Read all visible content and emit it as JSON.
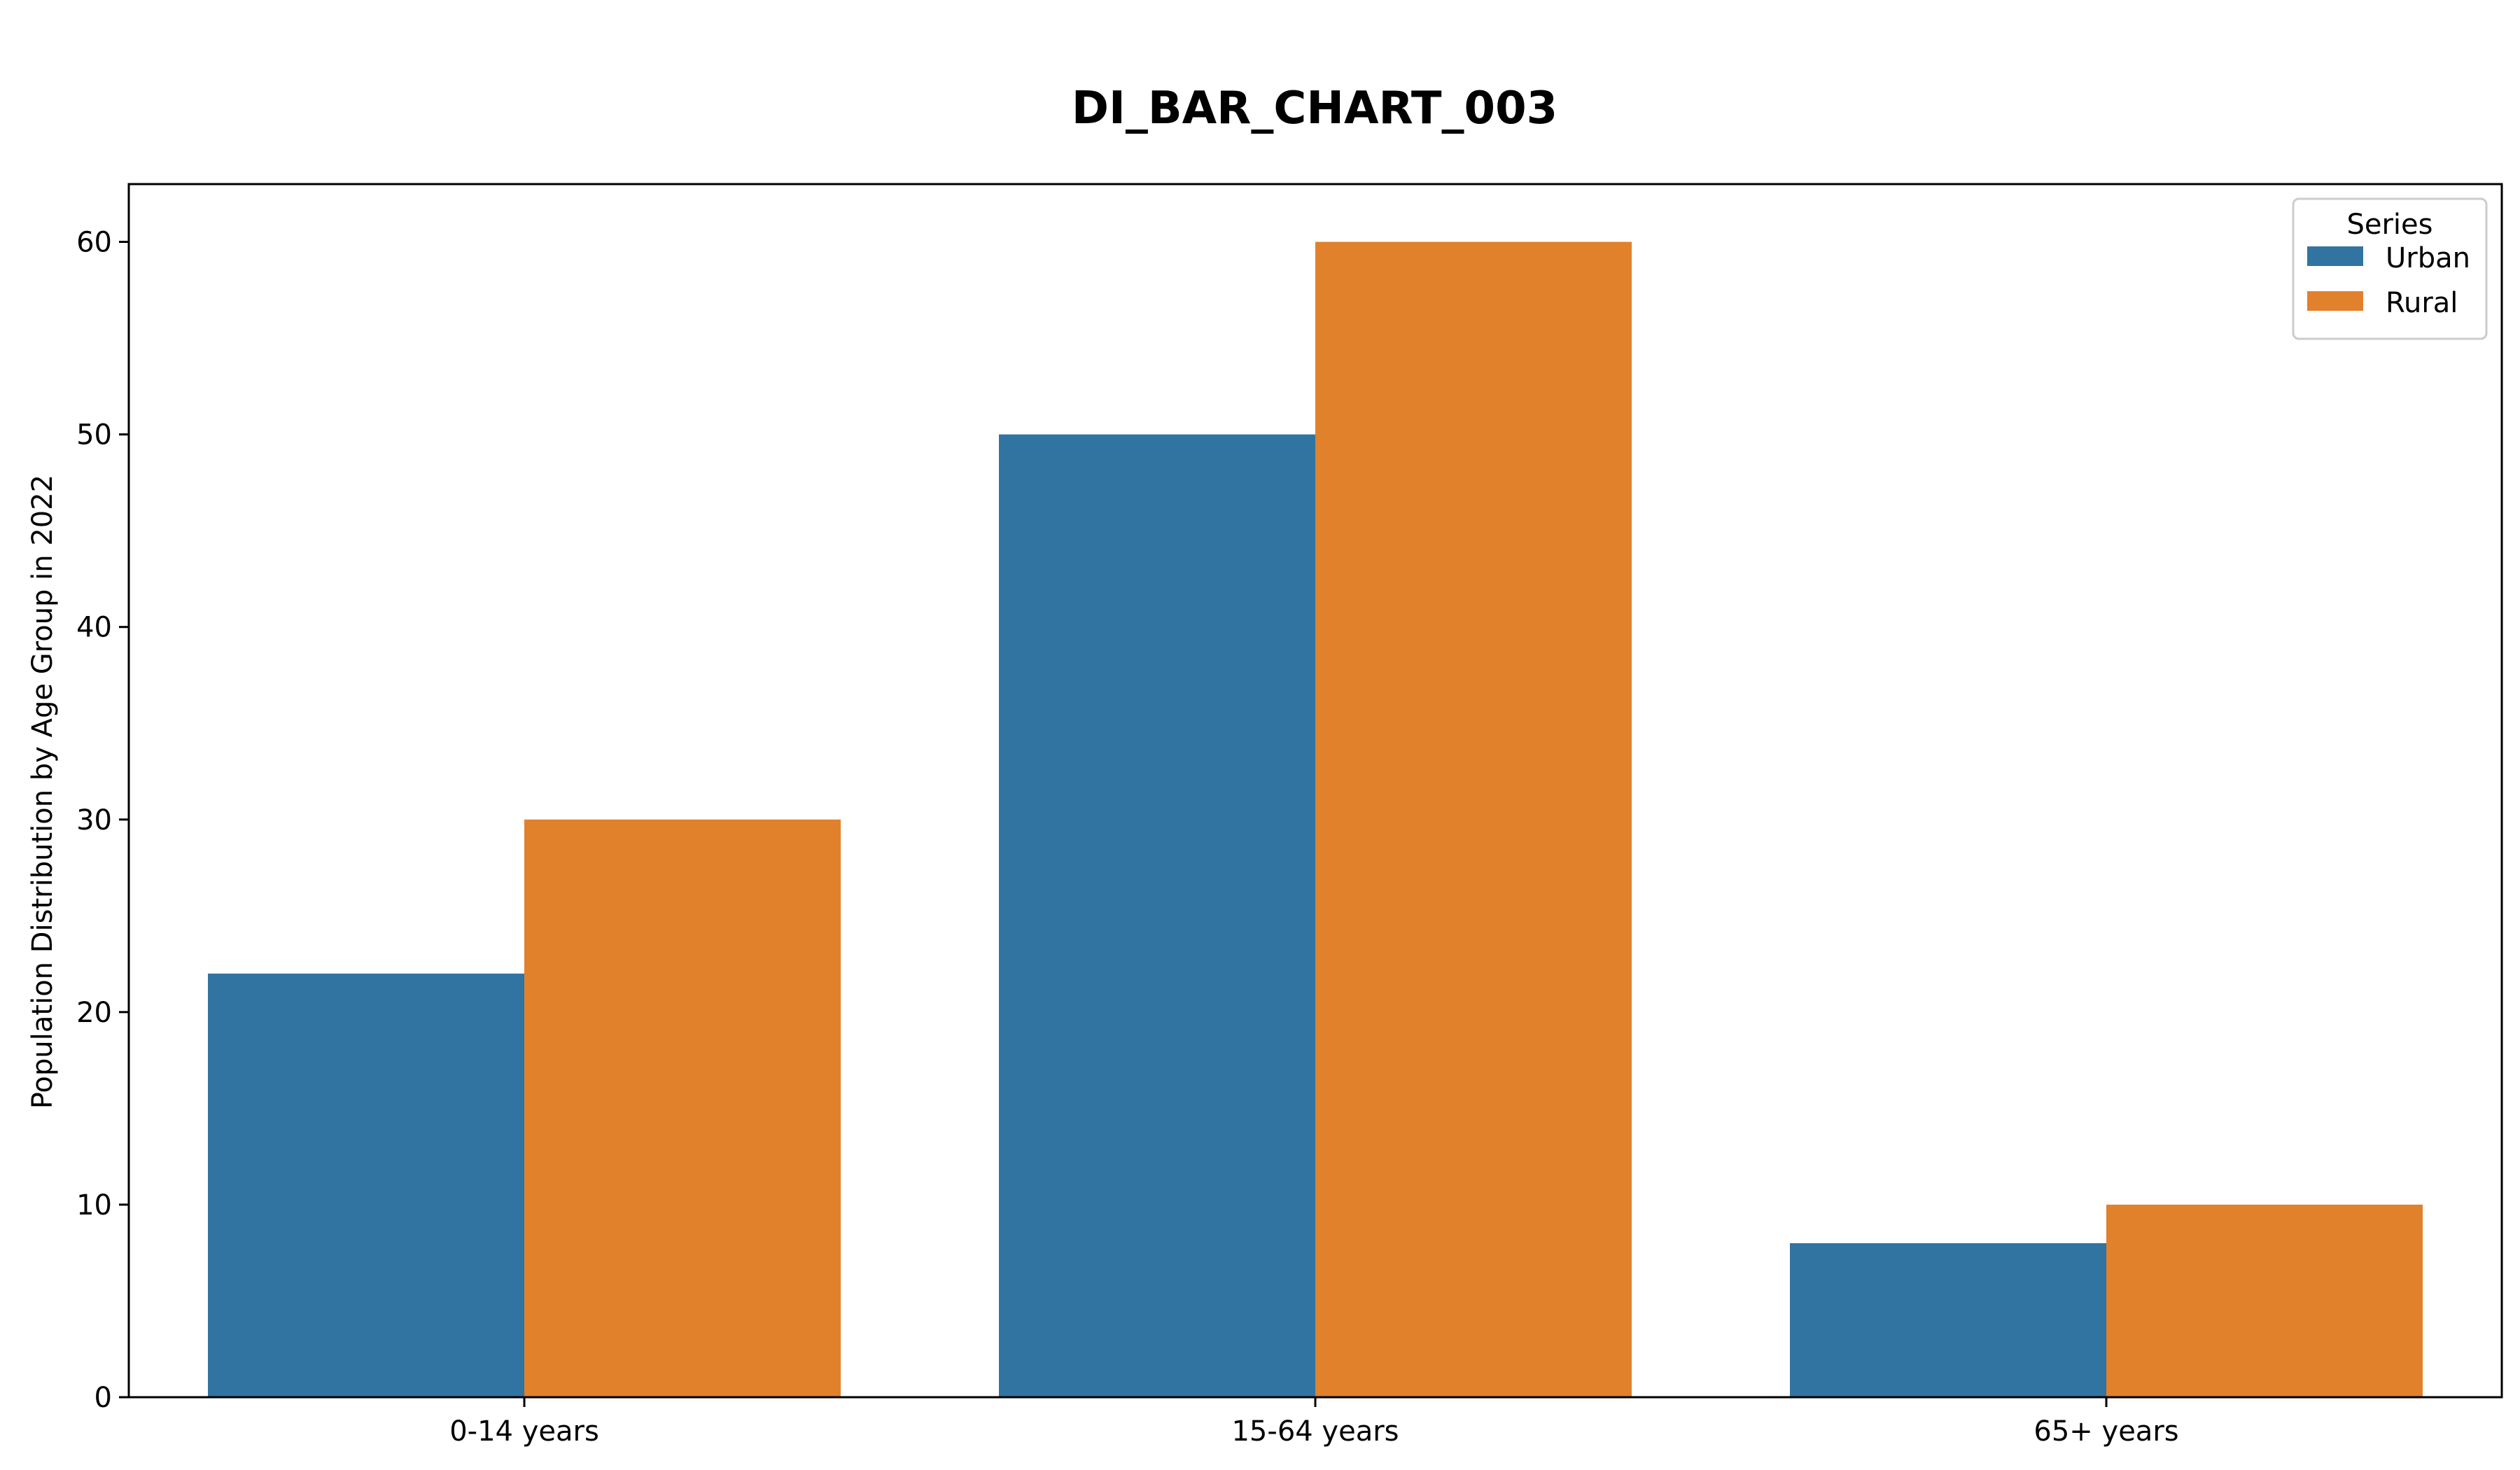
{
  "chart_data": {
    "type": "bar",
    "title": "DI_BAR_CHART_003",
    "xlabel": "",
    "ylabel": "Population Distribution by Age Group in 2022",
    "categories": [
      "0-14 years",
      "15-64 years",
      "65+ years"
    ],
    "series": [
      {
        "name": "Urban",
        "values": [
          22,
          50,
          8
        ],
        "color": "#3274a1"
      },
      {
        "name": "Rural",
        "values": [
          30,
          60,
          10
        ],
        "color": "#e1812c"
      }
    ],
    "ylim": [
      0,
      63
    ],
    "yticks": [
      0,
      10,
      20,
      30,
      40,
      50,
      60
    ],
    "grid": false,
    "legend": {
      "title": "Series",
      "placement": "top-right"
    }
  }
}
